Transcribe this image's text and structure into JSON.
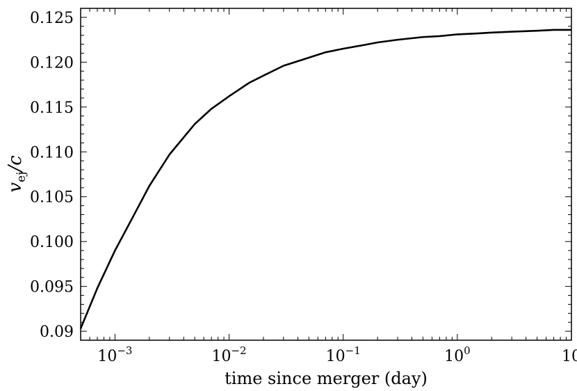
{
  "chart_data": {
    "type": "line",
    "title": "",
    "xlabel": "time since merger (day)",
    "ylabel": {
      "var": "v",
      "sub": "ej",
      "rest": "/c"
    },
    "x_scale": "log",
    "xlim": [
      0.0005,
      10
    ],
    "ylim": [
      0.089,
      0.126
    ],
    "x_ticks": [
      {
        "value": 0.001,
        "base": "10",
        "exp": "−3"
      },
      {
        "value": 0.01,
        "base": "10",
        "exp": "−2"
      },
      {
        "value": 0.1,
        "base": "10",
        "exp": "−1"
      },
      {
        "value": 1,
        "base": "10",
        "exp": "0"
      },
      {
        "value": 10,
        "base": "10",
        "exp": ""
      }
    ],
    "y_ticks": [
      {
        "value": 0.09,
        "label": "0.09"
      },
      {
        "value": 0.095,
        "label": "0.095"
      },
      {
        "value": 0.1,
        "label": "0.100"
      },
      {
        "value": 0.105,
        "label": "0.105"
      },
      {
        "value": 0.11,
        "label": "0.110"
      },
      {
        "value": 0.115,
        "label": "0.115"
      },
      {
        "value": 0.12,
        "label": "0.120"
      },
      {
        "value": 0.125,
        "label": "0.125"
      }
    ],
    "grid": false,
    "series": [
      {
        "color": "#000000",
        "x": [
          0.0005,
          0.0007,
          0.001,
          0.0015,
          0.002,
          0.003,
          0.005,
          0.007,
          0.01,
          0.015,
          0.02,
          0.03,
          0.05,
          0.07,
          0.1,
          0.15,
          0.2,
          0.3,
          0.5,
          0.7,
          1,
          1.5,
          2,
          3,
          5,
          7,
          10
        ],
        "y": [
          0.0903,
          0.0948,
          0.099,
          0.1032,
          0.1062,
          0.1097,
          0.1131,
          0.1148,
          0.1162,
          0.1177,
          0.1185,
          0.1196,
          0.1205,
          0.1211,
          0.1215,
          0.1219,
          0.1222,
          0.1225,
          0.1228,
          0.1229,
          0.1231,
          0.1232,
          0.1233,
          0.1234,
          0.1235,
          0.1236,
          0.1236
        ]
      }
    ]
  }
}
